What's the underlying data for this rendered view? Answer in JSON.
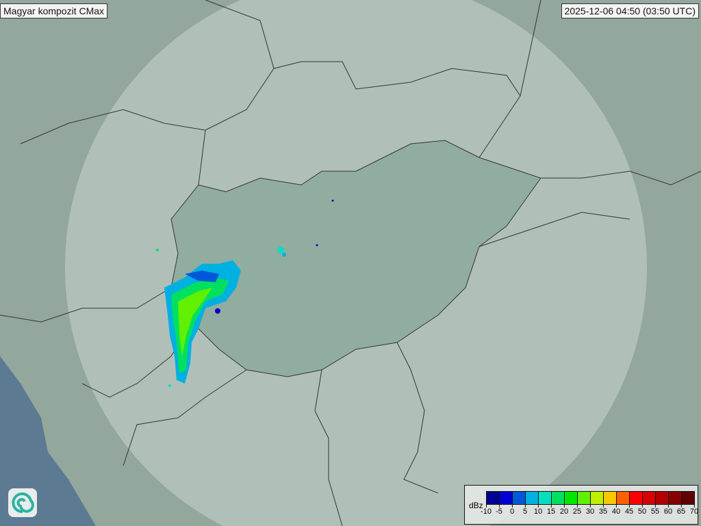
{
  "header": {
    "title": "Magyar kompozit  CMax",
    "timestamp": "2025-12-06 04:50 (03:50 UTC)"
  },
  "legend": {
    "unit": "dBz",
    "ticks": [
      "-10",
      "-5",
      "0",
      "5",
      "10",
      "15",
      "20",
      "25",
      "30",
      "35",
      "40",
      "45",
      "50",
      "55",
      "60",
      "65",
      "70"
    ],
    "colors": [
      "#000090",
      "#0000d0",
      "#0058d8",
      "#00b0e0",
      "#00e0c0",
      "#00e060",
      "#00e800",
      "#60f000",
      "#c0f000",
      "#f8c800",
      "#ff6000",
      "#ff0000",
      "#d80000",
      "#b00000",
      "#880000",
      "#600000"
    ]
  },
  "logo": {
    "icon": "spiral-logo-icon"
  },
  "map": {
    "coverage_color": "#c9d6cf",
    "land_color": "#93a79d",
    "sea_color": "#5d7a93"
  }
}
